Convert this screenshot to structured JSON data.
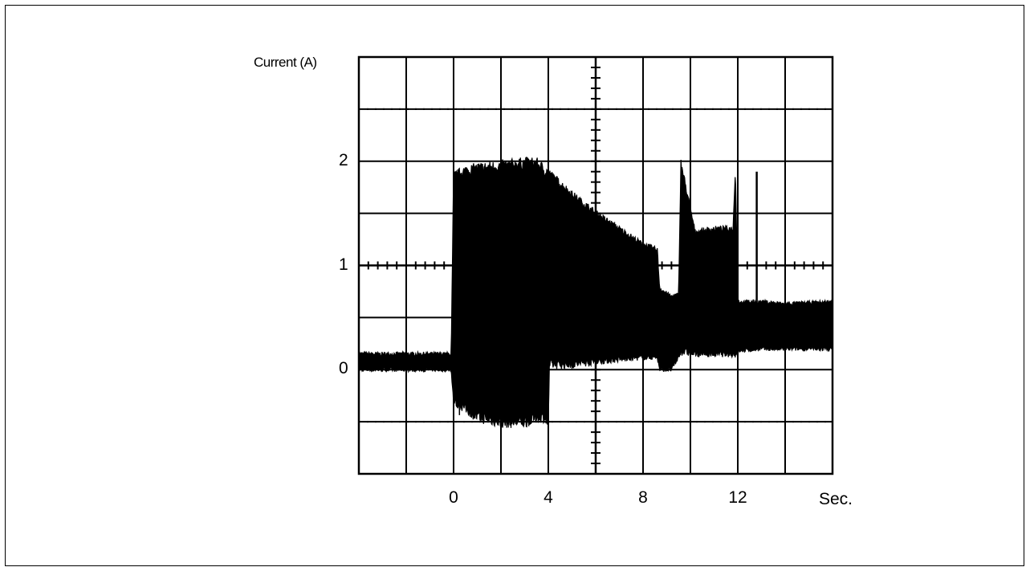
{
  "chart_data": {
    "type": "line",
    "title": "",
    "xlabel": "Sec.",
    "ylabel": "Current (A)",
    "x_ticks": [
      "0",
      "4",
      "8",
      "12"
    ],
    "y_ticks": [
      "0",
      "1",
      "2"
    ],
    "xlim": [
      -4,
      16
    ],
    "ylim": [
      -1,
      3
    ],
    "grid": true,
    "legend": "none",
    "series": [
      {
        "name": "",
        "style": "dense noisy trace (envelope shown as min/max)",
        "t": [
          -4,
          -0.1,
          0,
          0.4,
          1,
          2,
          3,
          3.5,
          4,
          4.05,
          5,
          6,
          7,
          8,
          8.6,
          8.7,
          9.2,
          9.5,
          9.6,
          10.2,
          11,
          11.8,
          11.9,
          12,
          13,
          14,
          16
        ],
        "max": [
          0.15,
          0.15,
          1.85,
          1.9,
          1.93,
          1.95,
          1.98,
          1.98,
          1.88,
          1.88,
          1.68,
          1.5,
          1.35,
          1.2,
          1.15,
          0.78,
          0.7,
          0.72,
          1.98,
          1.32,
          1.35,
          1.35,
          1.95,
          0.65,
          0.65,
          0.63,
          0.65
        ],
        "min": [
          0.0,
          0.0,
          -0.3,
          -0.35,
          -0.45,
          -0.5,
          -0.5,
          -0.45,
          -0.45,
          0.05,
          0.05,
          0.08,
          0.1,
          0.12,
          0.12,
          0.0,
          0.0,
          0.12,
          0.18,
          0.15,
          0.15,
          0.15,
          0.15,
          0.18,
          0.2,
          0.2,
          0.2
        ]
      }
    ],
    "spikes": [
      {
        "t": 12.8,
        "value": 1.9
      }
    ]
  }
}
